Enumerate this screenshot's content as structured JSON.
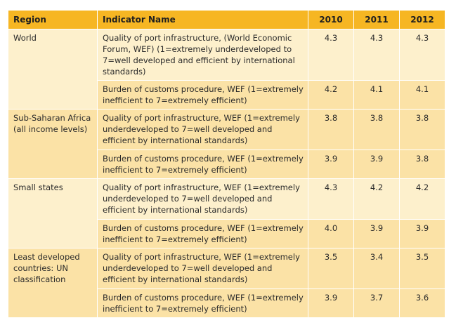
{
  "header": {
    "region": "Region",
    "indicator": "Indicator Name",
    "y2010": "2010",
    "y2011": "2011",
    "y2012": "2012"
  },
  "groups": [
    {
      "region": "World",
      "rows": [
        {
          "indicator": "Quality of port infrastructure, (World Economic Forum, WEF) (1=extremely underdeveloped to 7=well developed and efficient by international standards)",
          "v2010": "4.3",
          "v2011": "4.3",
          "v2012": "4.3"
        },
        {
          "indicator": "Burden of customs procedure, WEF (1=extremely inefficient to 7=extremely efficient)",
          "v2010": "4.2",
          "v2011": "4.1",
          "v2012": "4.1"
        }
      ]
    },
    {
      "region": "Sub-Saharan Africa (all income levels)",
      "rows": [
        {
          "indicator": "Quality of port infrastructure, WEF (1=extremely underdeveloped to 7=well developed and efficient by international standards)",
          "v2010": "3.8",
          "v2011": "3.8",
          "v2012": "3.8"
        },
        {
          "indicator": "Burden of customs procedure, WEF (1=extremely inefficient to 7=extremely efficient)",
          "v2010": "3.9",
          "v2011": "3.9",
          "v2012": "3.8"
        }
      ]
    },
    {
      "region": "Small states",
      "rows": [
        {
          "indicator": "Quality of port infrastructure, WEF (1=extremely underdeveloped to 7=well developed and efficient by international standards)",
          "v2010": "4.3",
          "v2011": "4.2",
          "v2012": "4.2"
        },
        {
          "indicator": "Burden of customs procedure, WEF (1=extremely inefficient to 7=extremely efficient)",
          "v2010": "4.0",
          "v2011": "3.9",
          "v2012": "3.9"
        }
      ]
    },
    {
      "region": "Least developed countries:  UN classification",
      "rows": [
        {
          "indicator": "Quality of port infrastructure, WEF (1=extremely underdeveloped to 7=well developed and efficient by international standards)",
          "v2010": "3.5",
          "v2011": "3.4",
          "v2012": "3.5"
        },
        {
          "indicator": "Burden of customs procedure, WEF (1=extremely inefficient to 7=extremely efficient)",
          "v2010": "3.9",
          "v2011": "3.7",
          "v2012": "3.6"
        }
      ]
    }
  ],
  "colors": {
    "header": "#f6b623",
    "row_light": "#fdf0cc",
    "row_dark": "#fbe2a6"
  }
}
